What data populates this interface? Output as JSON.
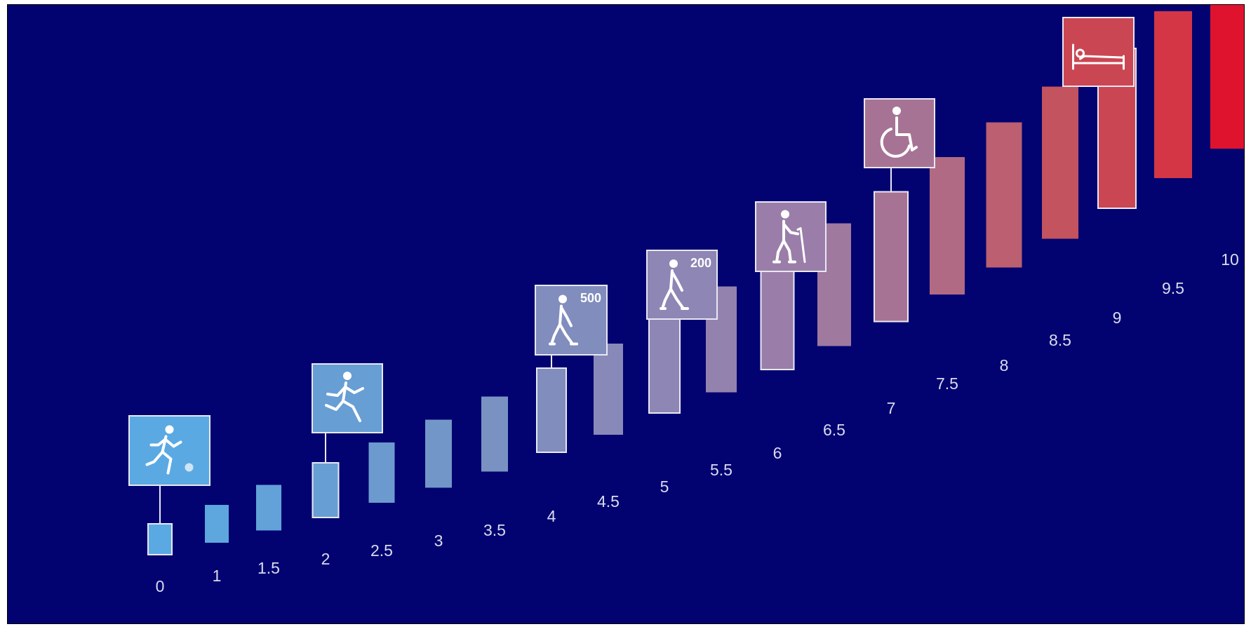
{
  "background_color": "#020370",
  "steps": [
    {
      "label": "0",
      "color": "#5ba9e3"
    },
    {
      "label": "1",
      "color": "#5ea6de"
    },
    {
      "label": "1.5",
      "color": "#63a2d9"
    },
    {
      "label": "2",
      "color": "#679ed4"
    },
    {
      "label": "2.5",
      "color": "#6d9ace"
    },
    {
      "label": "3",
      "color": "#7396c8"
    },
    {
      "label": "3.5",
      "color": "#7a92c2"
    },
    {
      "label": "4",
      "color": "#818dbd"
    },
    {
      "label": "4.5",
      "color": "#8889b8"
    },
    {
      "label": "5",
      "color": "#8e86b4"
    },
    {
      "label": "5.5",
      "color": "#9482ae"
    },
    {
      "label": "6",
      "color": "#9a7ea9"
    },
    {
      "label": "6.5",
      "color": "#a0799f"
    },
    {
      "label": "7",
      "color": "#a77394"
    },
    {
      "label": "7.5",
      "color": "#b16a83"
    },
    {
      "label": "8",
      "color": "#bb5f71"
    },
    {
      "label": "8.5",
      "color": "#c3535e"
    },
    {
      "label": "9",
      "color": "#cb4653"
    },
    {
      "label": "9.5",
      "color": "#d43645"
    },
    {
      "label": "10",
      "color": "#e0132e"
    }
  ],
  "milestones": [
    {
      "step": "0",
      "icon": "running-with-ball-icon",
      "number": ""
    },
    {
      "step": "2",
      "icon": "running-person-icon",
      "number": ""
    },
    {
      "step": "4",
      "icon": "walking-person-icon",
      "number": "500"
    },
    {
      "step": "5",
      "icon": "walking-person-icon",
      "number": "200"
    },
    {
      "step": "6",
      "icon": "walking-with-cane-icon",
      "number": ""
    },
    {
      "step": "7",
      "icon": "wheelchair-icon",
      "number": ""
    },
    {
      "step": "9",
      "icon": "bed-icon",
      "number": ""
    }
  ]
}
